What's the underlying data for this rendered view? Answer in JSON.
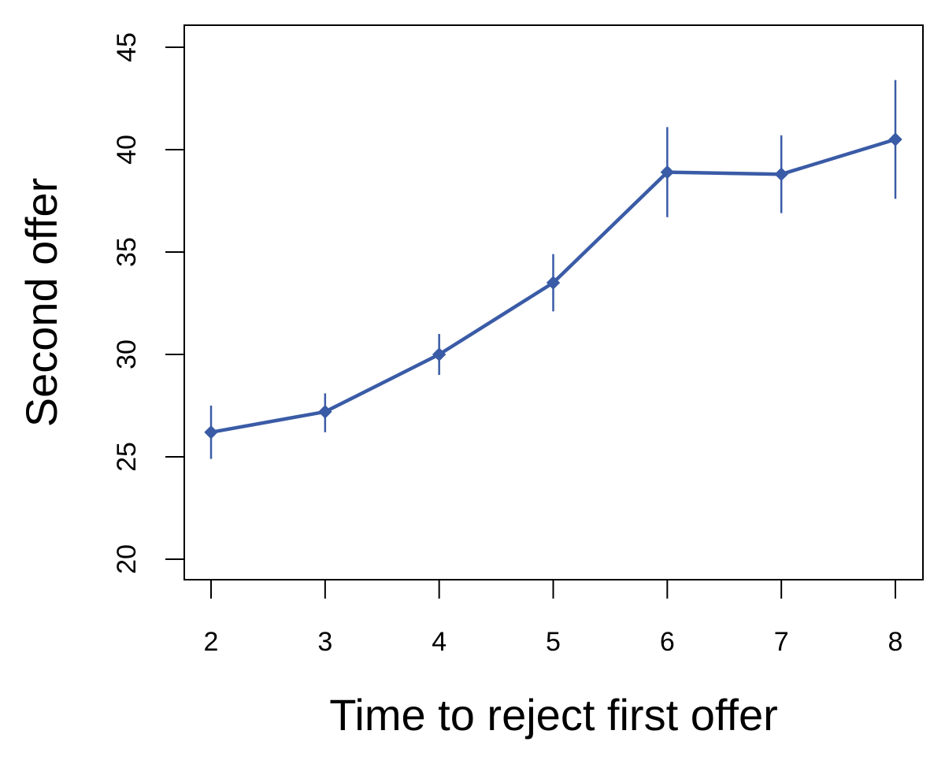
{
  "chart_data": {
    "type": "line",
    "title": "",
    "xlabel": "Time to reject first offer",
    "ylabel": "Second offer",
    "x": [
      2,
      3,
      4,
      5,
      6,
      7,
      8
    ],
    "xlim": [
      2,
      8
    ],
    "ylim": [
      20,
      45
    ],
    "x_ticks": [
      "2",
      "3",
      "4",
      "5",
      "6",
      "7",
      "8"
    ],
    "y_ticks": [
      "20",
      "25",
      "30",
      "35",
      "40",
      "45"
    ],
    "series": [
      {
        "values": [
          26.2,
          27.2,
          30.0,
          33.5,
          38.9,
          38.8,
          40.5
        ],
        "error_low": [
          24.9,
          26.2,
          29.0,
          32.1,
          36.7,
          36.9,
          37.6
        ],
        "error_high": [
          27.5,
          28.1,
          31.0,
          34.9,
          41.1,
          40.7,
          43.4
        ],
        "marker": "diamond"
      }
    ],
    "grid": false,
    "legend": "none",
    "colors": {
      "series": "#3a5ba6",
      "axis": "#000000"
    }
  }
}
